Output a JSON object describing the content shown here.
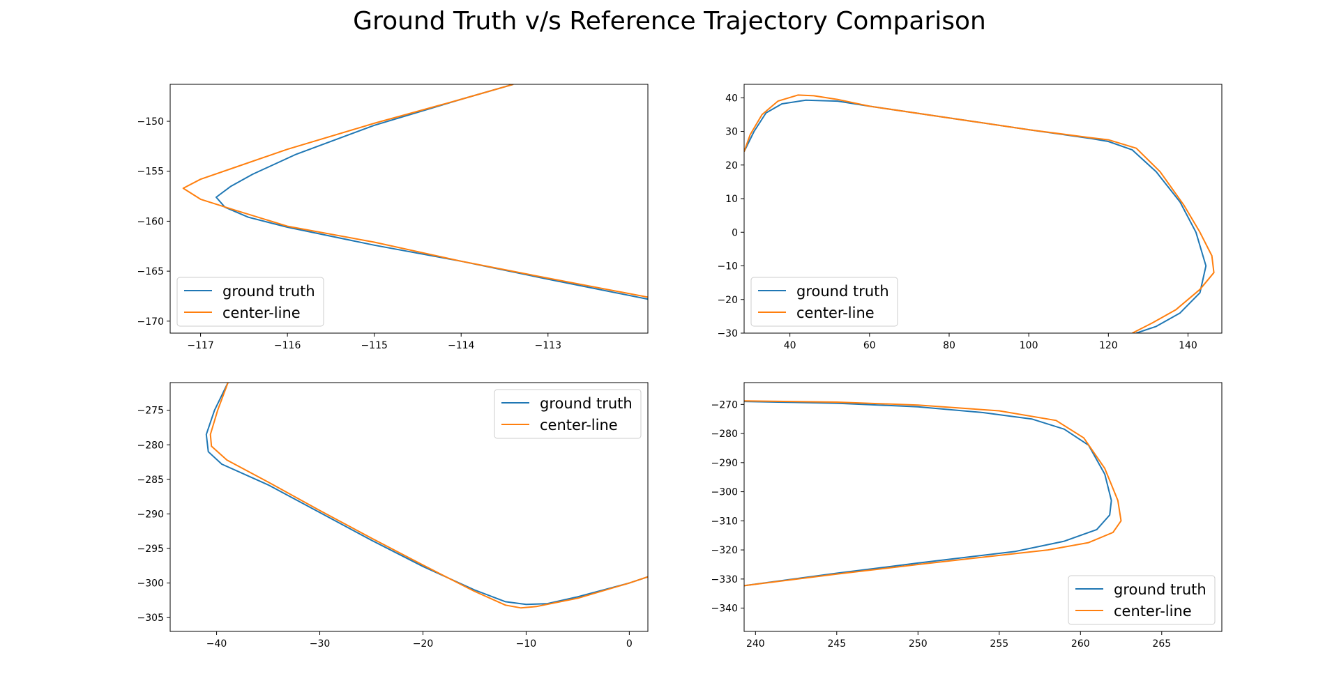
{
  "title": "Ground Truth v/s Reference Trajectory Comparison",
  "colors": {
    "ground_truth": "#1f77b4",
    "center_line": "#ff7f0e"
  },
  "chart_data": [
    {
      "type": "line",
      "xlim": [
        -117.35,
        -111.85
      ],
      "ylim": [
        -171.2,
        -146.3
      ],
      "xticks": [
        -117,
        -116,
        -115,
        -114,
        -113
      ],
      "yticks": [
        -150,
        -155,
        -160,
        -165,
        -170
      ],
      "legend": "bottom-left",
      "series": [
        {
          "name": "ground truth",
          "color_key": "ground_truth",
          "points": [
            [
              -113.4,
              -146.3
            ],
            [
              -114.0,
              -147.8
            ],
            [
              -115.0,
              -150.4
            ],
            [
              -115.9,
              -153.3
            ],
            [
              -116.4,
              -155.3
            ],
            [
              -116.65,
              -156.5
            ],
            [
              -116.82,
              -157.6
            ],
            [
              -116.72,
              -158.6
            ],
            [
              -116.45,
              -159.6
            ],
            [
              -116.0,
              -160.6
            ],
            [
              -115.0,
              -162.4
            ],
            [
              -114.0,
              -164.0
            ],
            [
              -113.0,
              -165.8
            ],
            [
              -111.85,
              -167.8
            ]
          ]
        },
        {
          "name": "center-line",
          "color_key": "center_line",
          "points": [
            [
              -113.4,
              -146.3
            ],
            [
              -114.0,
              -147.8
            ],
            [
              -115.0,
              -150.2
            ],
            [
              -116.0,
              -152.8
            ],
            [
              -116.6,
              -154.6
            ],
            [
              -117.0,
              -155.8
            ],
            [
              -117.2,
              -156.7
            ],
            [
              -117.0,
              -157.8
            ],
            [
              -116.6,
              -158.9
            ],
            [
              -116.0,
              -160.5
            ],
            [
              -115.0,
              -162.1
            ],
            [
              -114.0,
              -164.0
            ],
            [
              -113.0,
              -165.7
            ],
            [
              -111.85,
              -167.6
            ]
          ]
        }
      ]
    },
    {
      "type": "line",
      "xlim": [
        28.5,
        148.5
      ],
      "ylim": [
        -30,
        44
      ],
      "xticks": [
        40,
        60,
        80,
        100,
        120,
        140
      ],
      "yticks": [
        40,
        30,
        20,
        10,
        0,
        -10,
        -20,
        -30
      ],
      "legend": "bottom-left",
      "series": [
        {
          "name": "ground truth",
          "color_key": "ground_truth",
          "points": [
            [
              28.5,
              24
            ],
            [
              31,
              30
            ],
            [
              34,
              35.5
            ],
            [
              38,
              38.2
            ],
            [
              44,
              39.3
            ],
            [
              52,
              39.0
            ],
            [
              60,
              37.5
            ],
            [
              80,
              34.0
            ],
            [
              100,
              30.5
            ],
            [
              115,
              28.0
            ],
            [
              120,
              27.0
            ],
            [
              126,
              24.5
            ],
            [
              132,
              18.0
            ],
            [
              138,
              9.0
            ],
            [
              142,
              0
            ],
            [
              144.5,
              -10
            ],
            [
              143,
              -18
            ],
            [
              138,
              -24
            ],
            [
              132,
              -28
            ],
            [
              127,
              -30
            ]
          ]
        },
        {
          "name": "center-line",
          "color_key": "center_line",
          "points": [
            [
              28.5,
              24
            ],
            [
              30,
              29
            ],
            [
              33,
              35
            ],
            [
              37,
              39
            ],
            [
              42,
              40.8
            ],
            [
              46,
              40.6
            ],
            [
              52,
              39.5
            ],
            [
              60,
              37.5
            ],
            [
              80,
              34.0
            ],
            [
              100,
              30.5
            ],
            [
              115,
              28.2
            ],
            [
              120,
              27.5
            ],
            [
              127,
              25.0
            ],
            [
              133,
              18.0
            ],
            [
              139,
              8.0
            ],
            [
              143,
              0
            ],
            [
              146,
              -7
            ],
            [
              146.5,
              -12
            ],
            [
              143,
              -17
            ],
            [
              137,
              -23
            ],
            [
              131,
              -27
            ],
            [
              126,
              -30
            ]
          ]
        }
      ]
    },
    {
      "type": "line",
      "xlim": [
        -44.5,
        1.8
      ],
      "ylim": [
        -307,
        -271
      ],
      "xticks": [
        -40,
        -30,
        -20,
        -10,
        0
      ],
      "yticks": [
        -275,
        -280,
        -285,
        -290,
        -295,
        -300,
        -305
      ],
      "legend": "top-right",
      "series": [
        {
          "name": "ground truth",
          "color_key": "ground_truth",
          "points": [
            [
              -38.9,
              -271
            ],
            [
              -40.2,
              -275
            ],
            [
              -41.0,
              -278.5
            ],
            [
              -40.8,
              -281
            ],
            [
              -39.5,
              -282.8
            ],
            [
              -35,
              -285.8
            ],
            [
              -30,
              -289.8
            ],
            [
              -25,
              -293.8
            ],
            [
              -20,
              -297.6
            ],
            [
              -15,
              -301.0
            ],
            [
              -12,
              -302.7
            ],
            [
              -10,
              -303.1
            ],
            [
              -8,
              -303.0
            ],
            [
              -5,
              -302.0
            ],
            [
              0,
              -300.0
            ],
            [
              1.8,
              -299.1
            ]
          ]
        },
        {
          "name": "center-line",
          "color_key": "center_line",
          "points": [
            [
              -38.9,
              -271
            ],
            [
              -39.9,
              -275
            ],
            [
              -40.6,
              -278.5
            ],
            [
              -40.5,
              -280.2
            ],
            [
              -39.0,
              -282.2
            ],
            [
              -35,
              -285.4
            ],
            [
              -30,
              -289.5
            ],
            [
              -25,
              -293.5
            ],
            [
              -20,
              -297.4
            ],
            [
              -15,
              -301.2
            ],
            [
              -12,
              -303.2
            ],
            [
              -10.5,
              -303.6
            ],
            [
              -9,
              -303.4
            ],
            [
              -5,
              -302.2
            ],
            [
              0,
              -300.0
            ],
            [
              1.8,
              -299.1
            ]
          ]
        }
      ]
    },
    {
      "type": "line",
      "xlim": [
        239.3,
        268.7
      ],
      "ylim": [
        -348,
        -262.5
      ],
      "xticks": [
        240,
        245,
        250,
        255,
        260,
        265
      ],
      "yticks": [
        -270,
        -280,
        -290,
        -300,
        -310,
        -320,
        -330,
        -340
      ],
      "legend": "bottom-right",
      "series": [
        {
          "name": "ground truth",
          "color_key": "ground_truth",
          "points": [
            [
              239.3,
              -269.0
            ],
            [
              245,
              -269.6
            ],
            [
              250,
              -270.8
            ],
            [
              254,
              -272.8
            ],
            [
              257,
              -275.0
            ],
            [
              259,
              -278.5
            ],
            [
              260.5,
              -284.0
            ],
            [
              261.5,
              -294.0
            ],
            [
              261.9,
              -303.0
            ],
            [
              261.8,
              -308.0
            ],
            [
              261.0,
              -313.0
            ],
            [
              259.0,
              -317.0
            ],
            [
              256,
              -320.5
            ],
            [
              250,
              -324.5
            ],
            [
              245,
              -328.0
            ],
            [
              239.3,
              -332.3
            ]
          ]
        },
        {
          "name": "center-line",
          "color_key": "center_line",
          "points": [
            [
              239.3,
              -268.8
            ],
            [
              245,
              -269.2
            ],
            [
              250,
              -270.2
            ],
            [
              255,
              -272.2
            ],
            [
              258.5,
              -275.5
            ],
            [
              260.2,
              -281.5
            ],
            [
              261.5,
              -292.0
            ],
            [
              262.3,
              -303.0
            ],
            [
              262.5,
              -310.0
            ],
            [
              262.0,
              -314.0
            ],
            [
              260.5,
              -317.5
            ],
            [
              258,
              -320.0
            ],
            [
              254,
              -322.5
            ],
            [
              250,
              -325.0
            ],
            [
              245,
              -328.3
            ],
            [
              239.3,
              -332.3
            ]
          ]
        }
      ]
    }
  ]
}
